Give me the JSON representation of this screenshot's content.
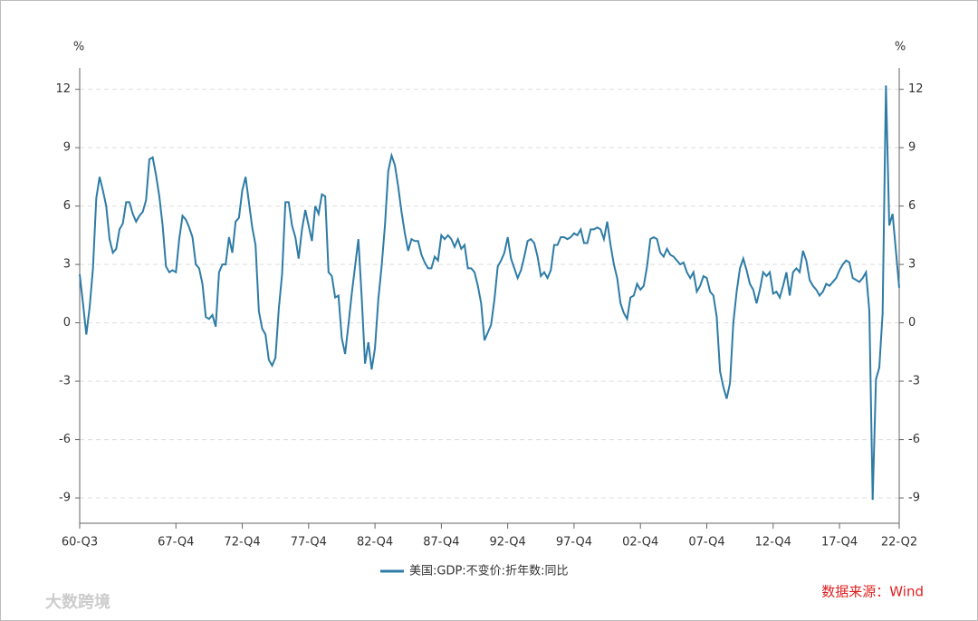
{
  "chart_data": {
    "type": "line",
    "ylabel": "%",
    "y2label": "%",
    "categories": [
      "60-Q3",
      null,
      null,
      null,
      null,
      null,
      null,
      null,
      null,
      null,
      null,
      null,
      null,
      null,
      null,
      null,
      null,
      null,
      null,
      null,
      null,
      null,
      null,
      null,
      null,
      null,
      null,
      null,
      null,
      "67-Q4",
      null,
      null,
      null,
      null,
      null,
      null,
      null,
      null,
      null,
      null,
      null,
      null,
      null,
      null,
      null,
      null,
      null,
      null,
      null,
      "72-Q4",
      null,
      null,
      null,
      null,
      null,
      null,
      null,
      null,
      null,
      null,
      null,
      null,
      null,
      null,
      null,
      null,
      null,
      null,
      null,
      "77-Q4",
      null,
      null,
      null,
      null,
      null,
      null,
      null,
      null,
      null,
      null,
      null,
      null,
      null,
      null,
      null,
      null,
      null,
      null,
      null,
      "82-Q4",
      null,
      null,
      null,
      null,
      null,
      null,
      null,
      null,
      null,
      null,
      null,
      null,
      null,
      null,
      null,
      null,
      null,
      null,
      null,
      "87-Q4",
      null,
      null,
      null,
      null,
      null,
      null,
      null,
      null,
      null,
      null,
      null,
      null,
      null,
      null,
      null,
      null,
      null,
      null,
      null,
      "92-Q4",
      null,
      null,
      null,
      null,
      null,
      null,
      null,
      null,
      null,
      null,
      null,
      null,
      null,
      null,
      null,
      null,
      null,
      null,
      null,
      "97-Q4",
      null,
      null,
      null,
      null,
      null,
      null,
      null,
      null,
      null,
      null,
      null,
      null,
      null,
      null,
      null,
      null,
      null,
      null,
      null,
      "02-Q4",
      null,
      null,
      null,
      null,
      null,
      null,
      null,
      null,
      null,
      null,
      null,
      null,
      null,
      null,
      null,
      null,
      null,
      null,
      null,
      "07-Q4",
      null,
      null,
      null,
      null,
      null,
      null,
      null,
      null,
      null,
      null,
      null,
      null,
      null,
      null,
      null,
      null,
      null,
      null,
      null,
      "12-Q4",
      null,
      null,
      null,
      null,
      null,
      null,
      null,
      null,
      null,
      null,
      null,
      null,
      null,
      null,
      null,
      null,
      null,
      null,
      null,
      "17-Q4",
      null,
      null,
      null,
      null,
      null,
      null,
      null,
      null,
      null,
      null,
      null,
      null,
      null,
      null,
      null,
      null,
      null,
      "22-Q2"
    ],
    "series": [
      {
        "name": "美国:GDP:不变价:折年数:同比",
        "color": "#2e7ca6",
        "values": [
          2.5,
          1.0,
          -0.6,
          0.8,
          2.8,
          6.4,
          7.5,
          6.8,
          6.0,
          4.3,
          3.6,
          3.8,
          4.8,
          5.1,
          6.2,
          6.2,
          5.6,
          5.2,
          5.5,
          5.7,
          6.3,
          8.4,
          8.5,
          7.6,
          6.5,
          5.0,
          2.9,
          2.6,
          2.7,
          2.6,
          4.3,
          5.5,
          5.3,
          4.9,
          4.4,
          3.0,
          2.8,
          2.0,
          0.3,
          0.2,
          0.4,
          -0.2,
          2.6,
          3.0,
          3.0,
          4.4,
          3.6,
          5.2,
          5.4,
          6.8,
          7.5,
          6.2,
          4.9,
          4.0,
          0.6,
          -0.3,
          -0.6,
          -1.9,
          -2.2,
          -1.8,
          0.7,
          2.5,
          6.2,
          6.2,
          5.0,
          4.4,
          3.3,
          4.8,
          5.8,
          5.0,
          4.2,
          6.0,
          5.6,
          6.6,
          6.5,
          2.6,
          2.4,
          1.3,
          1.4,
          -0.8,
          -1.6,
          -0.1,
          1.5,
          2.9,
          4.3,
          1.3,
          -2.1,
          -1.0,
          -2.4,
          -1.3,
          1.2,
          2.9,
          5.0,
          7.8,
          8.6,
          8.1,
          7.0,
          5.7,
          4.6,
          3.7,
          4.3,
          4.2,
          4.2,
          3.5,
          3.1,
          2.8,
          2.8,
          3.4,
          3.2,
          4.5,
          4.3,
          4.5,
          4.3,
          3.9,
          4.3,
          3.8,
          4.0,
          2.8,
          2.8,
          2.6,
          1.9,
          1.0,
          -0.9,
          -0.5,
          -0.1,
          1.2,
          2.9,
          3.2,
          3.6,
          4.4,
          3.3,
          2.8,
          2.3,
          2.7,
          3.4,
          4.2,
          4.3,
          4.1,
          3.4,
          2.4,
          2.6,
          2.3,
          2.7,
          4.0,
          4.0,
          4.4,
          4.4,
          4.3,
          4.4,
          4.6,
          4.5,
          4.8,
          4.1,
          4.1,
          4.8,
          4.8,
          4.9,
          4.8,
          4.3,
          5.2,
          4.0,
          3.0,
          2.3,
          1.0,
          0.5,
          0.2,
          1.3,
          1.4,
          2.0,
          1.7,
          1.9,
          2.9,
          4.3,
          4.4,
          4.3,
          3.6,
          3.4,
          3.8,
          3.5,
          3.4,
          3.2,
          3.0,
          3.1,
          2.6,
          2.3,
          2.6,
          1.6,
          1.9,
          2.4,
          2.3,
          1.6,
          1.4,
          0.3,
          -2.5,
          -3.3,
          -3.9,
          -3.1,
          0.0,
          1.6,
          2.8,
          3.3,
          2.7,
          2.0,
          1.7,
          1.0,
          1.7,
          2.6,
          2.4,
          2.6,
          1.5,
          1.6,
          1.3,
          1.9,
          2.6,
          1.4,
          2.6,
          2.8,
          2.6,
          3.7,
          3.2,
          2.2,
          1.9,
          1.7,
          1.4,
          1.6,
          2.0,
          1.9,
          2.1,
          2.3,
          2.7,
          3.0,
          3.2,
          3.1,
          2.3,
          2.2,
          2.1,
          2.3,
          2.6,
          0.6,
          -9.1,
          -2.9,
          -2.3,
          0.5,
          12.2,
          5.0,
          5.6,
          3.7,
          1.8
        ]
      }
    ],
    "ylim": [
      -10.3,
      13.1
    ],
    "yticks": [
      -9,
      -6,
      -3,
      0,
      3,
      6,
      9,
      12
    ],
    "y2lim": [
      -10.3,
      13.1
    ],
    "y2ticks": [
      -9,
      -6,
      -3,
      0,
      3,
      6,
      9,
      12
    ],
    "grid": true,
    "source": "数据来源：Wind",
    "watermark": "大数跨境"
  }
}
